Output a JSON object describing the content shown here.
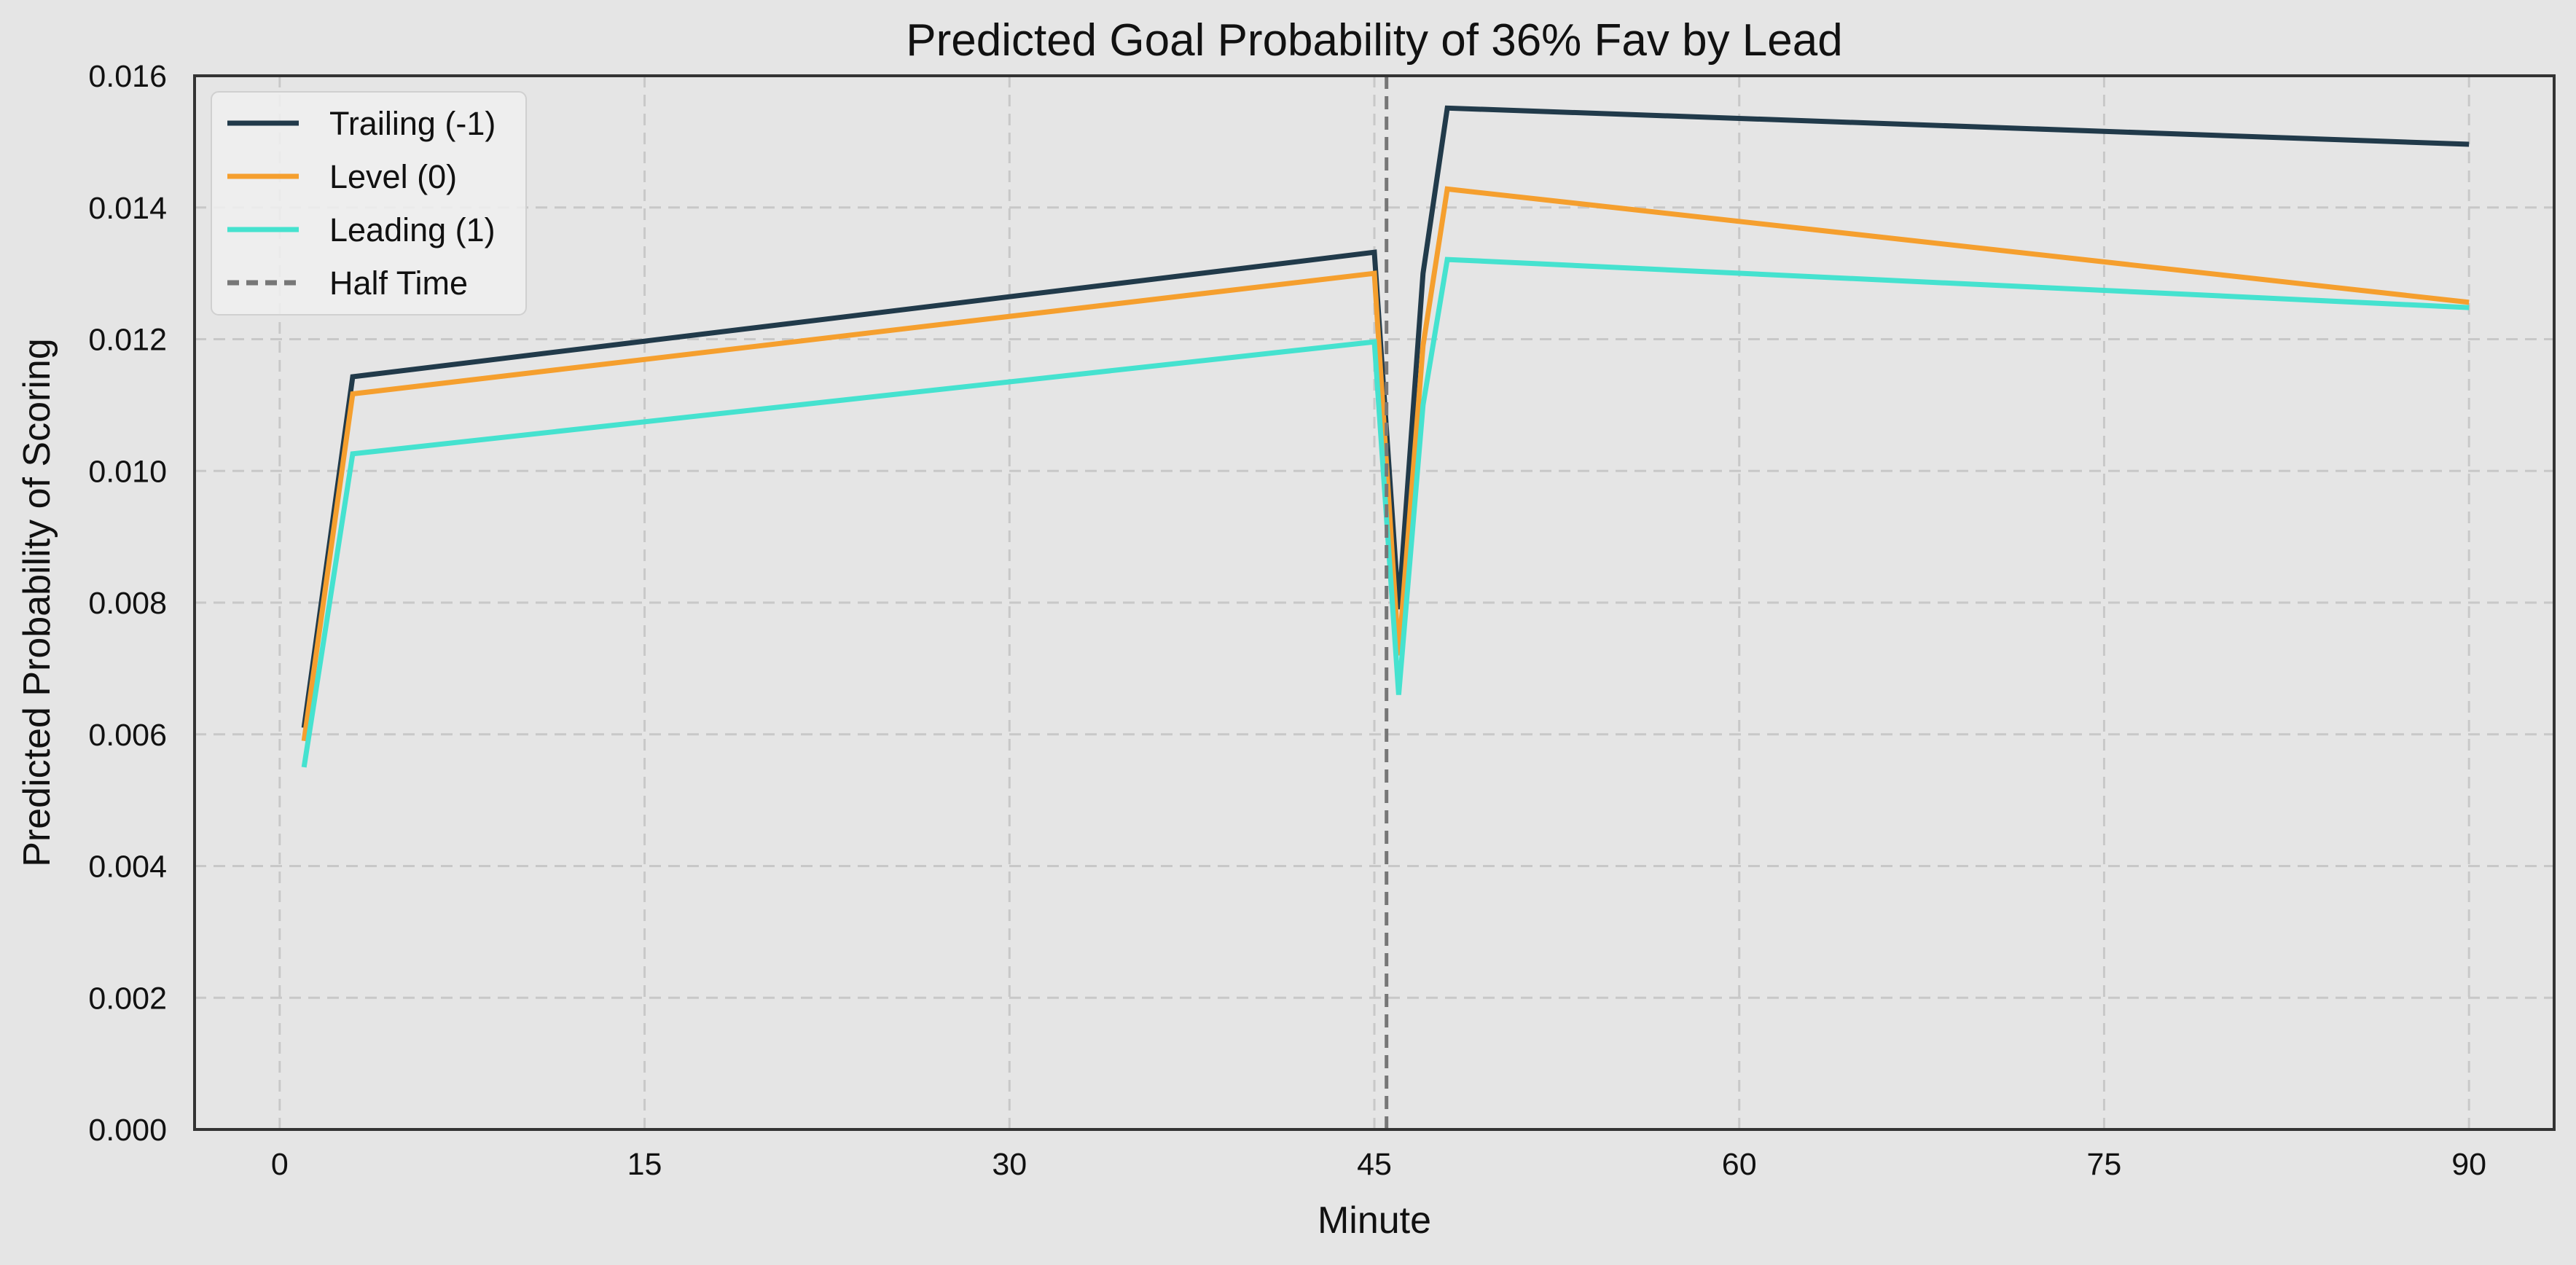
{
  "chart_data": {
    "type": "line",
    "title": "Predicted Goal Probability of 36% Fav by Lead",
    "xlabel": "Minute",
    "ylabel": "Predicted Probability of Scoring",
    "xlim": [
      -3.5,
      93.5
    ],
    "ylim": [
      0.0,
      0.016
    ],
    "xticks": [
      0,
      15,
      30,
      45,
      60,
      75,
      90
    ],
    "yticks": [
      0.0,
      0.002,
      0.004,
      0.006,
      0.008,
      0.01,
      0.012,
      0.014,
      0.016
    ],
    "grid": true,
    "legend_position": "top-left",
    "vline": {
      "name": "Half Time",
      "x": 45.5,
      "color": "#777777",
      "style": "dashed"
    },
    "series": [
      {
        "name": "Trailing (-1)",
        "color": "#213a4a",
        "x": [
          1,
          3,
          45,
          46,
          47,
          48,
          90
        ],
        "y": [
          0.0061,
          0.01143,
          0.01332,
          0.0079,
          0.013,
          0.01551,
          0.01496
        ]
      },
      {
        "name": "Level (0)",
        "color": "#f59f2e",
        "x": [
          1,
          3,
          45,
          46,
          47,
          48,
          90
        ],
        "y": [
          0.0059,
          0.01117,
          0.013,
          0.0072,
          0.0119,
          0.01428,
          0.01256
        ]
      },
      {
        "name": "Leading (1)",
        "color": "#45e2cf",
        "x": [
          1,
          3,
          45,
          46,
          47,
          48,
          90
        ],
        "y": [
          0.0055,
          0.01026,
          0.01196,
          0.0066,
          0.011,
          0.01321,
          0.01248
        ]
      }
    ]
  }
}
